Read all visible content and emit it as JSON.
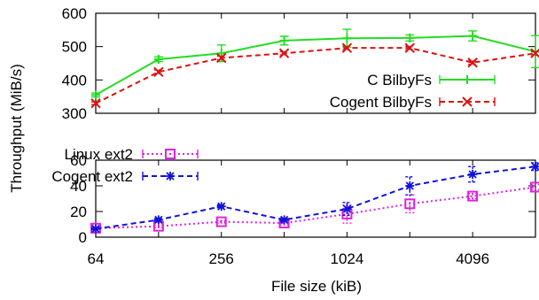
{
  "chart_data": [
    {
      "type": "line",
      "panel": "top",
      "xscale": "log2",
      "x": [
        64,
        128,
        256,
        512,
        1024,
        2048,
        4096,
        8192
      ],
      "ylim": [
        300,
        600
      ],
      "yticks": [
        300,
        400,
        500,
        600
      ],
      "grid": false,
      "legend_position": "bottom-right",
      "series": [
        {
          "name": "C BilbyFs",
          "color": "#22dd22",
          "marker": "plus",
          "style": "solid",
          "values": [
            355,
            462,
            480,
            518,
            525,
            526,
            532,
            485
          ],
          "err": [
            6,
            7,
            25,
            13,
            27,
            9,
            15,
            48
          ]
        },
        {
          "name": "Cogent BilbyFs",
          "color": "#dd1111",
          "marker": "x",
          "style": "dashed",
          "values": [
            330,
            424,
            466,
            480,
            496,
            496,
            452,
            480
          ],
          "err": [
            4,
            6,
            6,
            5,
            5,
            5,
            5,
            5
          ]
        }
      ]
    },
    {
      "type": "line",
      "panel": "bottom",
      "xscale": "log2",
      "x": [
        64,
        128,
        256,
        512,
        1024,
        2048,
        4096,
        8192
      ],
      "ylim": [
        0,
        60
      ],
      "yticks": [
        0,
        20,
        40,
        60
      ],
      "grid": false,
      "legend_position": "top-left",
      "xlabel": "File size (kiB)",
      "xtick_labels": [
        "64",
        "256",
        "1024",
        "4096"
      ],
      "xtick_values": [
        64,
        256,
        1024,
        4096
      ],
      "series": [
        {
          "name": "Linux ext2",
          "color": "#dd22dd",
          "marker": "square",
          "style": "dotted",
          "values": [
            7,
            8.5,
            12,
            11,
            18,
            26,
            32,
            39
          ],
          "err": [
            0.8,
            1,
            1,
            1.5,
            7,
            7,
            2,
            2
          ]
        },
        {
          "name": "Cogent ext2",
          "color": "#1111dd",
          "marker": "star",
          "style": "dashed",
          "values": [
            6.5,
            13.5,
            24,
            13.5,
            22,
            40,
            49,
            55
          ],
          "err": [
            0.8,
            1,
            1,
            1,
            5,
            7,
            6,
            3
          ]
        }
      ]
    }
  ],
  "ylabel": "Throughput (MiB/s)"
}
